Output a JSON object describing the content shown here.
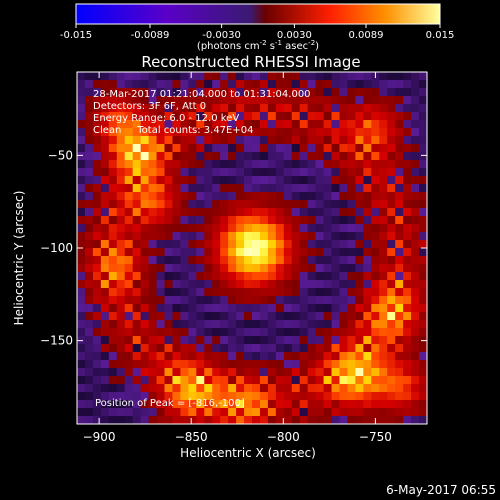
{
  "chart_data": {
    "type": "heatmap",
    "title": "Reconstructed RHESSI Image",
    "xlabel": "Heliocentric X (arcsec)",
    "ylabel": "Heliocentric Y (arcsec)",
    "xlim": [
      -912,
      -722
    ],
    "ylim": [
      -195,
      -5
    ],
    "x_ticks": [
      -900,
      -850,
      -800,
      -750
    ],
    "y_ticks": [
      -50,
      -100,
      -150
    ],
    "colorbar": {
      "label": "(photons cm",
      "label_exp1": "-2",
      "label_mid1": " s",
      "label_exp2": "-1",
      "label_mid2": " asec",
      "label_exp3": "-2",
      "label_end": ")",
      "range": [
        -0.015,
        0.015
      ],
      "ticks": [
        -0.015,
        -0.0089,
        -0.003,
        0.003,
        0.0089,
        0.015
      ],
      "tick_labels": [
        "-0.015",
        "-0.0089",
        "-0.0030",
        "0.0030",
        "0.0089",
        "0.015"
      ],
      "colors": [
        "#0000ff",
        "#5a00c8",
        "#4a1a8a",
        "#8a0000",
        "#ff2000",
        "#ff9000",
        "#ffff90"
      ]
    },
    "annotations": [
      "28-Mar-2017 01:21:04.000 to 01:31:04.000",
      "Detectors: 3F 6F, Att 0",
      "Energy Range: 6.0 - 12.0 keV",
      "Clean     Total counts: 3.47E+04"
    ],
    "peak_label": "Position of Peak = [-816,-100]",
    "peak": {
      "x": -816,
      "y": -100,
      "value": 0.015
    },
    "grid": false,
    "legend": "none"
  },
  "footer": {
    "timestamp": "6-May-2017 06:55"
  }
}
